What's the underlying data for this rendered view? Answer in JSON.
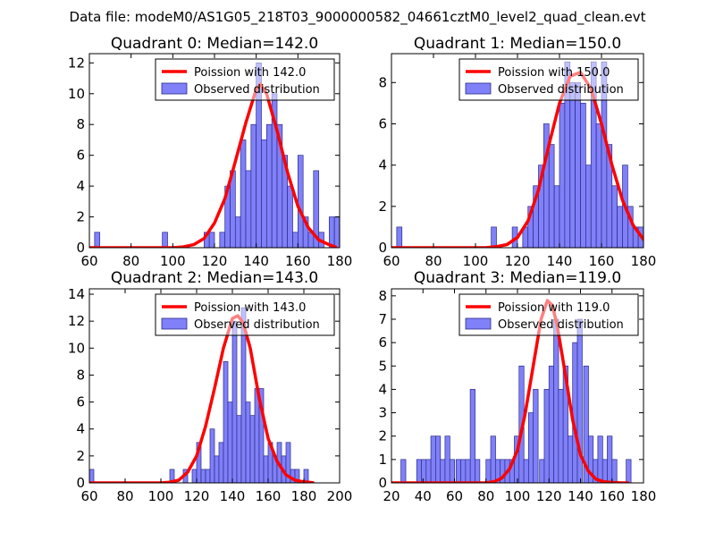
{
  "figure": {
    "suptitle": "Data file: modeM0/AS1G05_218T03_9000000582_04661cztM0_level2_quad_clean.evt"
  },
  "colors": {
    "hist_fill": "#8080f8",
    "hist_edge": "#2a2a8a",
    "curve": "#ff0000"
  },
  "chart_data": [
    {
      "type": "bar",
      "title": "Quadrant 0: Median=142.0",
      "xlim": [
        60,
        180
      ],
      "ylim": [
        0,
        12.6
      ],
      "xticks": [
        60,
        80,
        100,
        120,
        140,
        160,
        180
      ],
      "yticks": [
        0,
        2,
        4,
        6,
        8,
        10,
        12
      ],
      "bin_width": 2.5,
      "bins": [
        [
          62.5,
          1
        ],
        [
          95,
          1
        ],
        [
          115,
          1
        ],
        [
          117.5,
          1
        ],
        [
          122.5,
          1
        ],
        [
          125,
          4
        ],
        [
          127.5,
          5
        ],
        [
          130,
          2
        ],
        [
          132.5,
          7
        ],
        [
          135,
          5
        ],
        [
          137.5,
          8
        ],
        [
          140,
          12
        ],
        [
          142.5,
          7
        ],
        [
          145,
          8
        ],
        [
          147.5,
          10
        ],
        [
          150,
          8
        ],
        [
          152.5,
          6
        ],
        [
          155,
          4
        ],
        [
          157.5,
          1
        ],
        [
          160,
          6
        ],
        [
          162.5,
          2
        ],
        [
          165,
          1
        ],
        [
          167.5,
          5
        ],
        [
          170,
          1
        ],
        [
          175,
          2
        ],
        [
          177.5,
          2
        ]
      ],
      "curve": {
        "mean": 142.0,
        "x": [
          60,
          100,
          105,
          110,
          115,
          120,
          125,
          130,
          135,
          140,
          142,
          145,
          150,
          155,
          160,
          165,
          170,
          175,
          178
        ],
        "y": [
          0,
          0,
          0.05,
          0.2,
          0.6,
          1.6,
          3.2,
          5.6,
          8.1,
          10.3,
          10.6,
          10.0,
          7.6,
          4.9,
          2.7,
          1.3,
          0.5,
          0.2,
          0.05
        ]
      },
      "legend": {
        "curve_label": "Poission with 142.0",
        "hist_label": "Observed distribution"
      }
    },
    {
      "type": "bar",
      "title": "Quadrant 1: Median=150.0",
      "xlim": [
        60,
        180
      ],
      "ylim": [
        0,
        9.4
      ],
      "xticks": [
        60,
        80,
        100,
        120,
        140,
        160,
        180
      ],
      "yticks": [
        0,
        2,
        4,
        6,
        8
      ],
      "bin_width": 2.5,
      "bins": [
        [
          62.5,
          1
        ],
        [
          107.5,
          1
        ],
        [
          117.5,
          1
        ],
        [
          122.5,
          1
        ],
        [
          125,
          2
        ],
        [
          127.5,
          3
        ],
        [
          130,
          4
        ],
        [
          132.5,
          6
        ],
        [
          135,
          5
        ],
        [
          137.5,
          3
        ],
        [
          140,
          7
        ],
        [
          142.5,
          9
        ],
        [
          145,
          8
        ],
        [
          147.5,
          8
        ],
        [
          150,
          7
        ],
        [
          152.5,
          4
        ],
        [
          155,
          9
        ],
        [
          157.5,
          6
        ],
        [
          160,
          9
        ],
        [
          162.5,
          5
        ],
        [
          165,
          3
        ],
        [
          167.5,
          2
        ],
        [
          170,
          4
        ],
        [
          172.5,
          2
        ],
        [
          175,
          1
        ],
        [
          177.5,
          1
        ]
      ],
      "curve": {
        "mean": 150.0,
        "x": [
          60,
          105,
          110,
          115,
          120,
          125,
          130,
          135,
          140,
          145,
          150,
          155,
          160,
          165,
          170,
          175,
          180
        ],
        "y": [
          0,
          0,
          0.05,
          0.15,
          0.5,
          1.3,
          2.8,
          5.0,
          7.0,
          8.3,
          8.5,
          7.7,
          6.0,
          4.0,
          2.3,
          1.1,
          0.4
        ]
      },
      "legend": {
        "curve_label": "Poission with 150.0",
        "hist_label": "Observed distribution"
      }
    },
    {
      "type": "bar",
      "title": "Quadrant 2: Median=143.0",
      "xlim": [
        60,
        200
      ],
      "ylim": [
        0,
        14.4
      ],
      "xticks": [
        60,
        80,
        100,
        120,
        140,
        160,
        180,
        200
      ],
      "yticks": [
        0,
        2,
        4,
        6,
        8,
        10,
        12,
        14
      ],
      "bin_width": 2.5,
      "bins": [
        [
          60,
          1
        ],
        [
          105,
          1
        ],
        [
          112.5,
          1
        ],
        [
          117.5,
          1
        ],
        [
          120,
          3
        ],
        [
          122.5,
          1
        ],
        [
          125,
          1
        ],
        [
          127.5,
          4
        ],
        [
          130,
          2
        ],
        [
          132.5,
          3
        ],
        [
          135,
          9
        ],
        [
          137.5,
          6
        ],
        [
          140,
          12
        ],
        [
          142.5,
          5
        ],
        [
          145,
          13
        ],
        [
          147.5,
          6
        ],
        [
          150,
          5
        ],
        [
          152.5,
          7
        ],
        [
          155,
          7
        ],
        [
          157.5,
          2
        ],
        [
          160,
          3
        ],
        [
          162.5,
          2
        ],
        [
          165,
          3
        ],
        [
          167.5,
          2
        ],
        [
          170,
          3
        ],
        [
          172.5,
          1
        ],
        [
          175,
          1
        ],
        [
          180,
          1
        ]
      ],
      "curve": {
        "mean": 143.0,
        "x": [
          60,
          100,
          105,
          110,
          115,
          120,
          125,
          130,
          135,
          140,
          143,
          146,
          150,
          155,
          160,
          165,
          170,
          175,
          180,
          185
        ],
        "y": [
          0,
          0,
          0.05,
          0.2,
          0.8,
          2.0,
          4.2,
          7.0,
          10.0,
          12.2,
          12.4,
          11.9,
          10.0,
          6.3,
          3.3,
          1.6,
          0.6,
          0.2,
          0.08,
          0.02
        ]
      },
      "legend": {
        "curve_label": "Poission with 143.0",
        "hist_label": "Observed distribution"
      }
    },
    {
      "type": "bar",
      "title": "Quadrant 3: Median=119.0",
      "xlim": [
        20,
        180
      ],
      "ylim": [
        0,
        8.3
      ],
      "xticks": [
        20,
        40,
        60,
        80,
        100,
        120,
        140,
        160,
        180
      ],
      "yticks": [
        0,
        1,
        2,
        3,
        4,
        5,
        6,
        7,
        8
      ],
      "bin_width": 3.1,
      "bins": [
        [
          26,
          1
        ],
        [
          36,
          1
        ],
        [
          39,
          1
        ],
        [
          42,
          1
        ],
        [
          45,
          2
        ],
        [
          48,
          2
        ],
        [
          51,
          1
        ],
        [
          54,
          2
        ],
        [
          57,
          1
        ],
        [
          61,
          1
        ],
        [
          64,
          1
        ],
        [
          67,
          1
        ],
        [
          70,
          4
        ],
        [
          73,
          1
        ],
        [
          80,
          1
        ],
        [
          83,
          2
        ],
        [
          86,
          1
        ],
        [
          89,
          1
        ],
        [
          92,
          1
        ],
        [
          95,
          1
        ],
        [
          98,
          2
        ],
        [
          101,
          5
        ],
        [
          104,
          1
        ],
        [
          107,
          3
        ],
        [
          110,
          4
        ],
        [
          114,
          1
        ],
        [
          117,
          4
        ],
        [
          120,
          5
        ],
        [
          123,
          7
        ],
        [
          126,
          4
        ],
        [
          129,
          5
        ],
        [
          132,
          2
        ],
        [
          135,
          6
        ],
        [
          138,
          7
        ],
        [
          142,
          5
        ],
        [
          145,
          2
        ],
        [
          148,
          1
        ],
        [
          151,
          2
        ],
        [
          154,
          1
        ],
        [
          157,
          2
        ],
        [
          160,
          1
        ],
        [
          169,
          1
        ]
      ],
      "curve": {
        "mean": 119.0,
        "x": [
          20,
          80,
          85,
          90,
          95,
          100,
          105,
          110,
          115,
          119,
          122,
          125,
          130,
          135,
          140,
          145,
          150,
          155,
          160,
          165,
          170
        ],
        "y": [
          0,
          0,
          0.05,
          0.2,
          0.6,
          1.4,
          3.0,
          5.0,
          7.0,
          7.8,
          7.6,
          6.8,
          4.8,
          2.7,
          1.2,
          0.5,
          0.15,
          0.05,
          0.02,
          0,
          0
        ]
      },
      "legend": {
        "curve_label": "Poission with 119.0",
        "hist_label": "Observed distribution"
      }
    }
  ]
}
